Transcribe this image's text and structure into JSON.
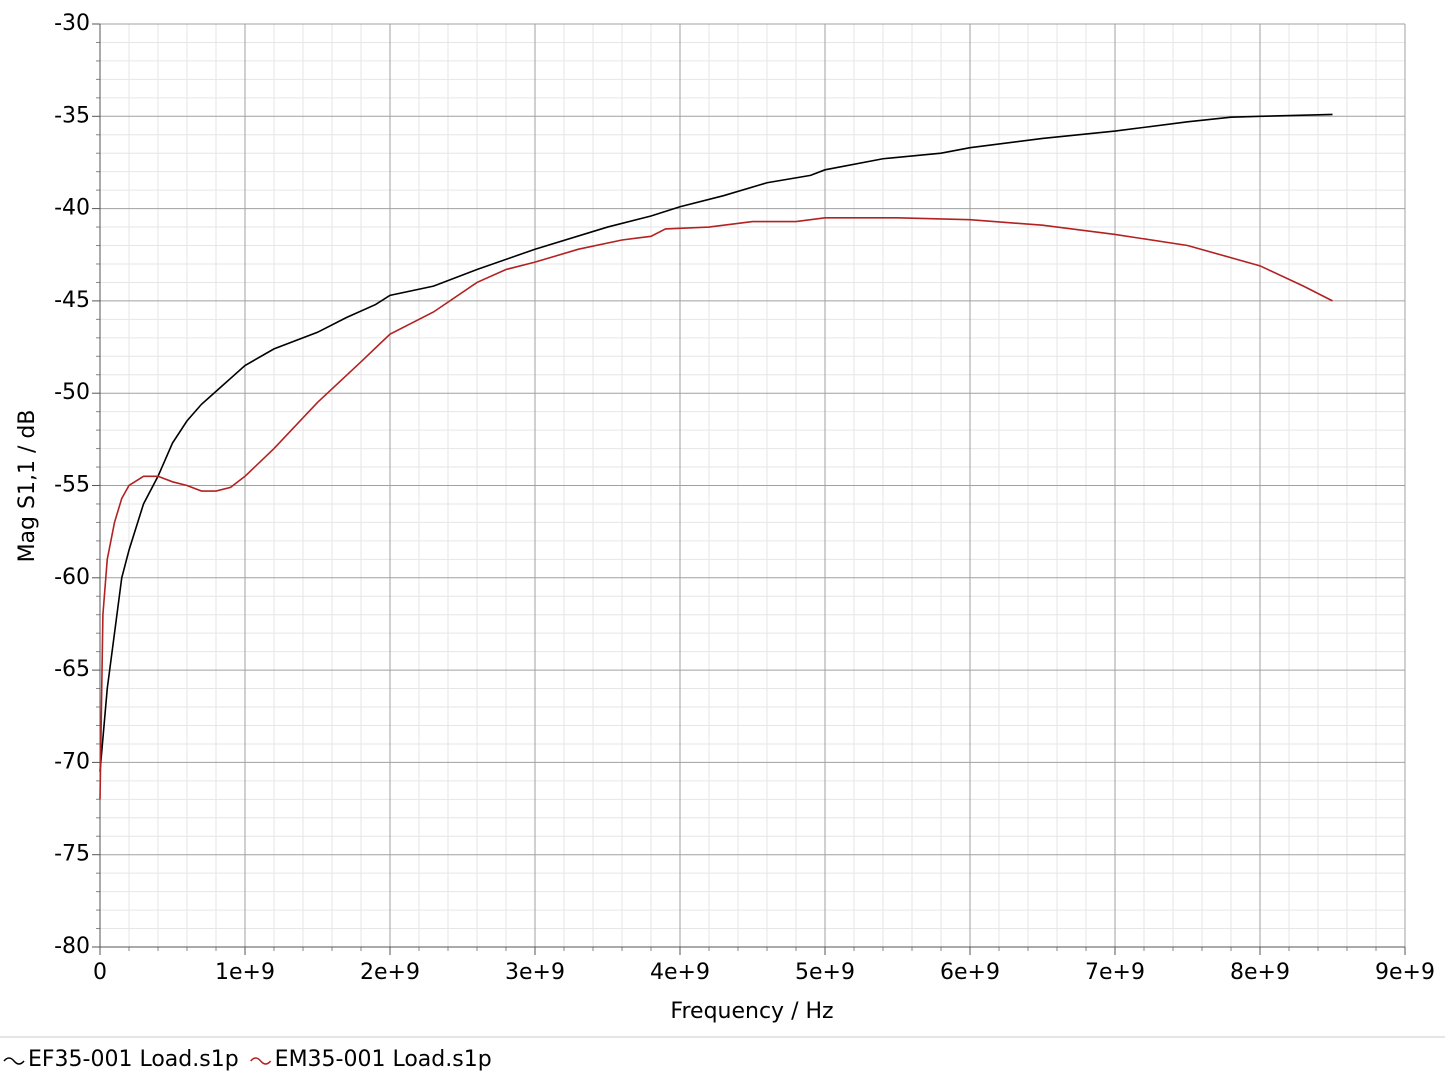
{
  "chart_data": {
    "type": "line",
    "x_label": "Frequency / Hz",
    "y_label": "Mag S1,1 / dB",
    "xlim": [
      0,
      9000000000
    ],
    "ylim": [
      -80,
      -30
    ],
    "xticks": [
      0,
      {
        "value": 1000000000,
        "label": "1e+9"
      },
      {
        "value": 2000000000,
        "label": "2e+9"
      },
      {
        "value": 3000000000,
        "label": "3e+9"
      },
      {
        "value": 4000000000,
        "label": "4e+9"
      },
      {
        "value": 5000000000,
        "label": "5e+9"
      },
      {
        "value": 6000000000,
        "label": "6e+9"
      },
      {
        "value": 7000000000,
        "label": "7e+9"
      },
      {
        "value": 8000000000,
        "label": "8e+9"
      },
      {
        "value": 9000000000,
        "label": "9e+9"
      }
    ],
    "yticks": [
      -30,
      -35,
      -40,
      -45,
      -50,
      -55,
      -60,
      -65,
      -70,
      -75,
      -80
    ],
    "grid": true,
    "minor_grid": true,
    "legend": "bottom-left",
    "series": [
      {
        "name": "EF35-001 Load.s1p",
        "color": "#000000",
        "x": [
          0,
          50000000,
          100000000,
          150000000,
          200000000,
          300000000,
          400000000,
          500000000,
          600000000,
          700000000,
          800000000,
          900000000,
          1000000000,
          1200000000,
          1500000000,
          1700000000,
          1900000000,
          2000000000,
          2300000000,
          2600000000,
          3000000000,
          3500000000,
          3800000000,
          4000000000,
          4300000000,
          4600000000,
          4900000000,
          5000000000,
          5400000000,
          5800000000,
          6000000000,
          6500000000,
          7000000000,
          7500000000,
          7800000000,
          8000000000,
          8500000000
        ],
        "values": [
          -70.5,
          -66,
          -63,
          -60,
          -58.5,
          -56,
          -54.5,
          -52.7,
          -51.5,
          -50.6,
          -49.9,
          -49.2,
          -48.5,
          -47.6,
          -46.7,
          -45.9,
          -45.2,
          -44.7,
          -44.2,
          -43.3,
          -42.2,
          -41.0,
          -40.4,
          -39.9,
          -39.3,
          -38.6,
          -38.2,
          -37.9,
          -37.3,
          -37.0,
          -36.7,
          -36.2,
          -35.8,
          -35.3,
          -35.05,
          -35.0,
          -34.9
        ]
      },
      {
        "name": "EM35-001 Load.s1p",
        "color": "#b22222",
        "x": [
          0,
          20000000,
          50000000,
          100000000,
          150000000,
          200000000,
          300000000,
          400000000,
          500000000,
          600000000,
          700000000,
          800000000,
          900000000,
          1000000000,
          1200000000,
          1500000000,
          1800000000,
          2000000000,
          2300000000,
          2600000000,
          2800000000,
          3000000000,
          3300000000,
          3600000000,
          3800000000,
          3900000000,
          4200000000,
          4500000000,
          4800000000,
          5000000000,
          5500000000,
          6000000000,
          6500000000,
          7000000000,
          7500000000,
          8000000000,
          8300000000,
          8500000000
        ],
        "values": [
          -72,
          -62,
          -59,
          -57,
          -55.7,
          -55.0,
          -54.5,
          -54.5,
          -54.8,
          -55.0,
          -55.3,
          -55.3,
          -55.1,
          -54.5,
          -53.0,
          -50.5,
          -48.3,
          -46.8,
          -45.6,
          -44.0,
          -43.3,
          -42.9,
          -42.2,
          -41.7,
          -41.5,
          -41.1,
          -41.0,
          -40.7,
          -40.7,
          -40.5,
          -40.5,
          -40.6,
          -40.9,
          -41.4,
          -42.0,
          -43.1,
          -44.2,
          -45.0
        ]
      }
    ]
  }
}
